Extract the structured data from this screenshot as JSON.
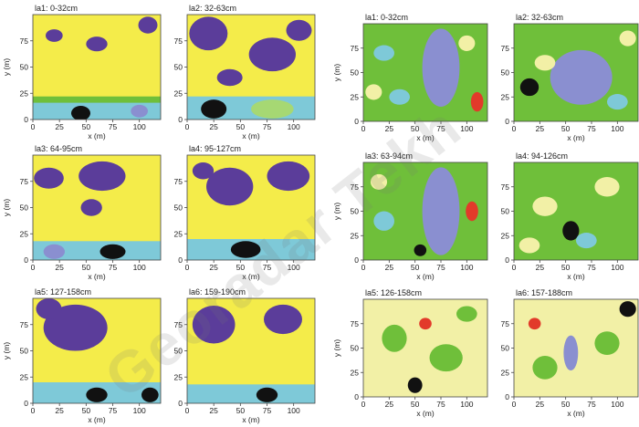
{
  "watermark": "Georadar Tekh",
  "colors": {
    "purple": "#5b3d9a",
    "yellow": "#f4ec4a",
    "light_yellow": "#f2f0a6",
    "green": "#6fbf3a",
    "light_green": "#a6d873",
    "cyan": "#7ec9d8",
    "blue_grey": "#8a8fd0",
    "black": "#111111",
    "red": "#e23a2a",
    "orange": "#f59a2a"
  },
  "chart_data": [
    {
      "type": "heatmap",
      "group": "left",
      "title": "la1: 0-32cm",
      "xlabel": "x (m)",
      "ylabel": "y (m)",
      "xlim": [
        0,
        120
      ],
      "ylim": [
        0,
        100
      ],
      "xticks": [
        "0",
        "25",
        "50",
        "75",
        "100"
      ],
      "yticks": [
        "0",
        "25",
        "50",
        "75"
      ],
      "background": "yellow",
      "regions": [
        {
          "kind": "band",
          "x0": 0,
          "x1": 120,
          "y0": 0,
          "y1": 18,
          "color": "cyan"
        },
        {
          "kind": "band",
          "x0": 0,
          "x1": 120,
          "y0": 16,
          "y1": 22,
          "color": "green"
        },
        {
          "kind": "blob",
          "cx": 45,
          "cy": 6,
          "rx": 9,
          "ry": 7,
          "color": "black"
        },
        {
          "kind": "blob",
          "cx": 100,
          "cy": 8,
          "rx": 8,
          "ry": 6,
          "color": "blue_grey"
        },
        {
          "kind": "blob",
          "cx": 20,
          "cy": 80,
          "rx": 8,
          "ry": 6,
          "color": "purple"
        },
        {
          "kind": "blob",
          "cx": 60,
          "cy": 72,
          "rx": 10,
          "ry": 7,
          "color": "purple"
        },
        {
          "kind": "blob",
          "cx": 108,
          "cy": 90,
          "rx": 9,
          "ry": 8,
          "color": "purple"
        }
      ]
    },
    {
      "type": "heatmap",
      "group": "left",
      "title": "la2: 32-63cm",
      "xlabel": "x (m)",
      "ylabel": "",
      "xlim": [
        0,
        120
      ],
      "ylim": [
        0,
        100
      ],
      "xticks": [
        "0",
        "25",
        "50",
        "75",
        "100"
      ],
      "yticks": [
        "0",
        "25",
        "50",
        "75"
      ],
      "background": "yellow",
      "regions": [
        {
          "kind": "blob",
          "cx": 20,
          "cy": 82,
          "rx": 18,
          "ry": 16,
          "color": "purple"
        },
        {
          "kind": "blob",
          "cx": 80,
          "cy": 62,
          "rx": 22,
          "ry": 16,
          "color": "purple"
        },
        {
          "kind": "blob",
          "cx": 105,
          "cy": 85,
          "rx": 12,
          "ry": 10,
          "color": "purple"
        },
        {
          "kind": "blob",
          "cx": 40,
          "cy": 40,
          "rx": 12,
          "ry": 8,
          "color": "purple"
        },
        {
          "kind": "band",
          "x0": 0,
          "x1": 120,
          "y0": 0,
          "y1": 22,
          "color": "cyan"
        },
        {
          "kind": "blob",
          "cx": 25,
          "cy": 10,
          "rx": 12,
          "ry": 9,
          "color": "black"
        },
        {
          "kind": "blob",
          "cx": 80,
          "cy": 10,
          "rx": 20,
          "ry": 9,
          "color": "light_green"
        }
      ]
    },
    {
      "type": "heatmap",
      "group": "left",
      "title": "la3: 64-95cm",
      "xlabel": "x (m)",
      "ylabel": "y (m)",
      "xlim": [
        0,
        120
      ],
      "ylim": [
        0,
        100
      ],
      "xticks": [
        "0",
        "25",
        "50",
        "75",
        "100"
      ],
      "yticks": [
        "0",
        "25",
        "50",
        "75"
      ],
      "background": "yellow",
      "regions": [
        {
          "kind": "blob",
          "cx": 15,
          "cy": 78,
          "rx": 14,
          "ry": 10,
          "color": "purple"
        },
        {
          "kind": "blob",
          "cx": 65,
          "cy": 80,
          "rx": 22,
          "ry": 14,
          "color": "purple"
        },
        {
          "kind": "blob",
          "cx": 55,
          "cy": 50,
          "rx": 10,
          "ry": 8,
          "color": "purple"
        },
        {
          "kind": "band",
          "x0": 0,
          "x1": 120,
          "y0": 0,
          "y1": 18,
          "color": "cyan"
        },
        {
          "kind": "blob",
          "cx": 20,
          "cy": 8,
          "rx": 10,
          "ry": 7,
          "color": "blue_grey"
        },
        {
          "kind": "blob",
          "cx": 75,
          "cy": 8,
          "rx": 12,
          "ry": 7,
          "color": "black"
        }
      ]
    },
    {
      "type": "heatmap",
      "group": "left",
      "title": "la4: 95-127cm",
      "xlabel": "x (m)",
      "ylabel": "",
      "xlim": [
        0,
        120
      ],
      "ylim": [
        0,
        100
      ],
      "xticks": [
        "0",
        "25",
        "50",
        "75",
        "100"
      ],
      "yticks": [
        "0",
        "25",
        "50",
        "75"
      ],
      "background": "yellow",
      "regions": [
        {
          "kind": "blob",
          "cx": 40,
          "cy": 70,
          "rx": 22,
          "ry": 18,
          "color": "purple"
        },
        {
          "kind": "blob",
          "cx": 95,
          "cy": 80,
          "rx": 20,
          "ry": 14,
          "color": "purple"
        },
        {
          "kind": "blob",
          "cx": 15,
          "cy": 85,
          "rx": 10,
          "ry": 8,
          "color": "purple"
        },
        {
          "kind": "band",
          "x0": 0,
          "x1": 120,
          "y0": 0,
          "y1": 20,
          "color": "cyan"
        },
        {
          "kind": "blob",
          "cx": 55,
          "cy": 10,
          "rx": 14,
          "ry": 8,
          "color": "black"
        }
      ]
    },
    {
      "type": "heatmap",
      "group": "left",
      "title": "la5: 127-158cm",
      "xlabel": "x (m)",
      "ylabel": "y (m)",
      "xlim": [
        0,
        120
      ],
      "ylim": [
        0,
        100
      ],
      "xticks": [
        "0",
        "25",
        "50",
        "75",
        "100"
      ],
      "yticks": [
        "0",
        "25",
        "50",
        "75"
      ],
      "background": "yellow",
      "regions": [
        {
          "kind": "blob",
          "cx": 40,
          "cy": 72,
          "rx": 30,
          "ry": 22,
          "color": "purple"
        },
        {
          "kind": "blob",
          "cx": 15,
          "cy": 90,
          "rx": 12,
          "ry": 10,
          "color": "purple"
        },
        {
          "kind": "band",
          "x0": 0,
          "x1": 120,
          "y0": 0,
          "y1": 20,
          "color": "cyan"
        },
        {
          "kind": "blob",
          "cx": 60,
          "cy": 8,
          "rx": 10,
          "ry": 7,
          "color": "black"
        },
        {
          "kind": "blob",
          "cx": 110,
          "cy": 8,
          "rx": 8,
          "ry": 7,
          "color": "black"
        }
      ]
    },
    {
      "type": "heatmap",
      "group": "left",
      "title": "la6: 159-190cm",
      "xlabel": "x (m)",
      "ylabel": "",
      "xlim": [
        0,
        120
      ],
      "ylim": [
        0,
        100
      ],
      "xticks": [
        "0",
        "25",
        "50",
        "75",
        "100"
      ],
      "yticks": [
        "0",
        "25",
        "50",
        "75"
      ],
      "background": "yellow",
      "regions": [
        {
          "kind": "blob",
          "cx": 25,
          "cy": 75,
          "rx": 20,
          "ry": 18,
          "color": "purple"
        },
        {
          "kind": "blob",
          "cx": 90,
          "cy": 80,
          "rx": 18,
          "ry": 14,
          "color": "purple"
        },
        {
          "kind": "band",
          "x0": 0,
          "x1": 120,
          "y0": 0,
          "y1": 18,
          "color": "cyan"
        },
        {
          "kind": "blob",
          "cx": 75,
          "cy": 8,
          "rx": 10,
          "ry": 7,
          "color": "black"
        }
      ]
    },
    {
      "type": "heatmap",
      "group": "right",
      "title": "la1: 0-32cm",
      "xlabel": "x (m)",
      "ylabel": "y (m)",
      "xlim": [
        0,
        120
      ],
      "ylim": [
        0,
        100
      ],
      "xticks": [
        "0",
        "25",
        "50",
        "75",
        "100"
      ],
      "yticks": [
        "0",
        "25",
        "50",
        "75"
      ],
      "background": "green",
      "regions": [
        {
          "kind": "blob",
          "cx": 75,
          "cy": 55,
          "rx": 18,
          "ry": 40,
          "color": "blue_grey"
        },
        {
          "kind": "blob",
          "cx": 20,
          "cy": 70,
          "rx": 10,
          "ry": 8,
          "color": "cyan"
        },
        {
          "kind": "blob",
          "cx": 35,
          "cy": 25,
          "rx": 10,
          "ry": 8,
          "color": "cyan"
        },
        {
          "kind": "blob",
          "cx": 100,
          "cy": 80,
          "rx": 8,
          "ry": 8,
          "color": "light_yellow"
        },
        {
          "kind": "blob",
          "cx": 110,
          "cy": 20,
          "rx": 6,
          "ry": 10,
          "color": "red"
        },
        {
          "kind": "blob",
          "cx": 10,
          "cy": 30,
          "rx": 8,
          "ry": 8,
          "color": "light_yellow"
        }
      ]
    },
    {
      "type": "heatmap",
      "group": "right",
      "title": "la2: 32-63cm",
      "xlabel": "x (m)",
      "ylabel": "",
      "xlim": [
        0,
        120
      ],
      "ylim": [
        0,
        100
      ],
      "xticks": [
        "0",
        "25",
        "50",
        "75",
        "100"
      ],
      "yticks": [
        "0",
        "25",
        "50",
        "75"
      ],
      "background": "green",
      "regions": [
        {
          "kind": "blob",
          "cx": 65,
          "cy": 45,
          "rx": 30,
          "ry": 28,
          "color": "blue_grey"
        },
        {
          "kind": "blob",
          "cx": 15,
          "cy": 35,
          "rx": 9,
          "ry": 9,
          "color": "black"
        },
        {
          "kind": "blob",
          "cx": 30,
          "cy": 60,
          "rx": 10,
          "ry": 8,
          "color": "light_yellow"
        },
        {
          "kind": "blob",
          "cx": 100,
          "cy": 20,
          "rx": 10,
          "ry": 8,
          "color": "cyan"
        },
        {
          "kind": "blob",
          "cx": 110,
          "cy": 85,
          "rx": 8,
          "ry": 8,
          "color": "light_yellow"
        }
      ]
    },
    {
      "type": "heatmap",
      "group": "right",
      "title": "la3: 63-94cm",
      "xlabel": "x (m)",
      "ylabel": "y (m)",
      "xlim": [
        0,
        120
      ],
      "ylim": [
        0,
        100
      ],
      "xticks": [
        "0",
        "25",
        "50",
        "75",
        "100"
      ],
      "yticks": [
        "0",
        "25",
        "50",
        "75"
      ],
      "background": "green",
      "regions": [
        {
          "kind": "blob",
          "cx": 75,
          "cy": 50,
          "rx": 18,
          "ry": 45,
          "color": "blue_grey"
        },
        {
          "kind": "blob",
          "cx": 20,
          "cy": 40,
          "rx": 10,
          "ry": 10,
          "color": "cyan"
        },
        {
          "kind": "blob",
          "cx": 55,
          "cy": 10,
          "rx": 6,
          "ry": 6,
          "color": "black"
        },
        {
          "kind": "blob",
          "cx": 15,
          "cy": 80,
          "rx": 8,
          "ry": 8,
          "color": "light_yellow"
        },
        {
          "kind": "blob",
          "cx": 105,
          "cy": 50,
          "rx": 6,
          "ry": 10,
          "color": "red"
        }
      ]
    },
    {
      "type": "heatmap",
      "group": "right",
      "title": "la4: 94-126cm",
      "xlabel": "x (m)",
      "ylabel": "",
      "xlim": [
        0,
        120
      ],
      "ylim": [
        0,
        100
      ],
      "xticks": [
        "0",
        "25",
        "50",
        "75",
        "100"
      ],
      "yticks": [
        "0",
        "25",
        "50",
        "75"
      ],
      "background": "green",
      "regions": [
        {
          "kind": "blob",
          "cx": 55,
          "cy": 30,
          "rx": 8,
          "ry": 10,
          "color": "black"
        },
        {
          "kind": "blob",
          "cx": 30,
          "cy": 55,
          "rx": 12,
          "ry": 10,
          "color": "light_yellow"
        },
        {
          "kind": "blob",
          "cx": 90,
          "cy": 75,
          "rx": 12,
          "ry": 10,
          "color": "light_yellow"
        },
        {
          "kind": "blob",
          "cx": 70,
          "cy": 20,
          "rx": 10,
          "ry": 8,
          "color": "cyan"
        },
        {
          "kind": "blob",
          "cx": 15,
          "cy": 15,
          "rx": 10,
          "ry": 8,
          "color": "light_yellow"
        }
      ]
    },
    {
      "type": "heatmap",
      "group": "right",
      "title": "la5: 126-158cm",
      "xlabel": "x (m)",
      "ylabel": "y (m)",
      "xlim": [
        0,
        120
      ],
      "ylim": [
        0,
        100
      ],
      "xticks": [
        "0",
        "25",
        "50",
        "75",
        "100"
      ],
      "yticks": [
        "0",
        "25",
        "50",
        "75"
      ],
      "background": "light_yellow",
      "regions": [
        {
          "kind": "blob",
          "cx": 50,
          "cy": 12,
          "rx": 7,
          "ry": 8,
          "color": "black"
        },
        {
          "kind": "blob",
          "cx": 30,
          "cy": 60,
          "rx": 12,
          "ry": 14,
          "color": "green"
        },
        {
          "kind": "blob",
          "cx": 80,
          "cy": 40,
          "rx": 16,
          "ry": 14,
          "color": "green"
        },
        {
          "kind": "blob",
          "cx": 100,
          "cy": 85,
          "rx": 10,
          "ry": 8,
          "color": "green"
        },
        {
          "kind": "blob",
          "cx": 60,
          "cy": 75,
          "rx": 6,
          "ry": 6,
          "color": "red"
        }
      ]
    },
    {
      "type": "heatmap",
      "group": "right",
      "title": "la6: 157-188cm",
      "xlabel": "x (m)",
      "ylabel": "",
      "xlim": [
        0,
        120
      ],
      "ylim": [
        0,
        100
      ],
      "xticks": [
        "0",
        "25",
        "50",
        "75",
        "100"
      ],
      "yticks": [
        "0",
        "25",
        "50",
        "75"
      ],
      "background": "light_yellow",
      "regions": [
        {
          "kind": "blob",
          "cx": 110,
          "cy": 90,
          "rx": 8,
          "ry": 8,
          "color": "black"
        },
        {
          "kind": "blob",
          "cx": 55,
          "cy": 45,
          "rx": 7,
          "ry": 18,
          "color": "blue_grey"
        },
        {
          "kind": "blob",
          "cx": 30,
          "cy": 30,
          "rx": 12,
          "ry": 12,
          "color": "green"
        },
        {
          "kind": "blob",
          "cx": 90,
          "cy": 55,
          "rx": 12,
          "ry": 12,
          "color": "green"
        },
        {
          "kind": "blob",
          "cx": 20,
          "cy": 75,
          "rx": 6,
          "ry": 6,
          "color": "red"
        }
      ]
    }
  ]
}
